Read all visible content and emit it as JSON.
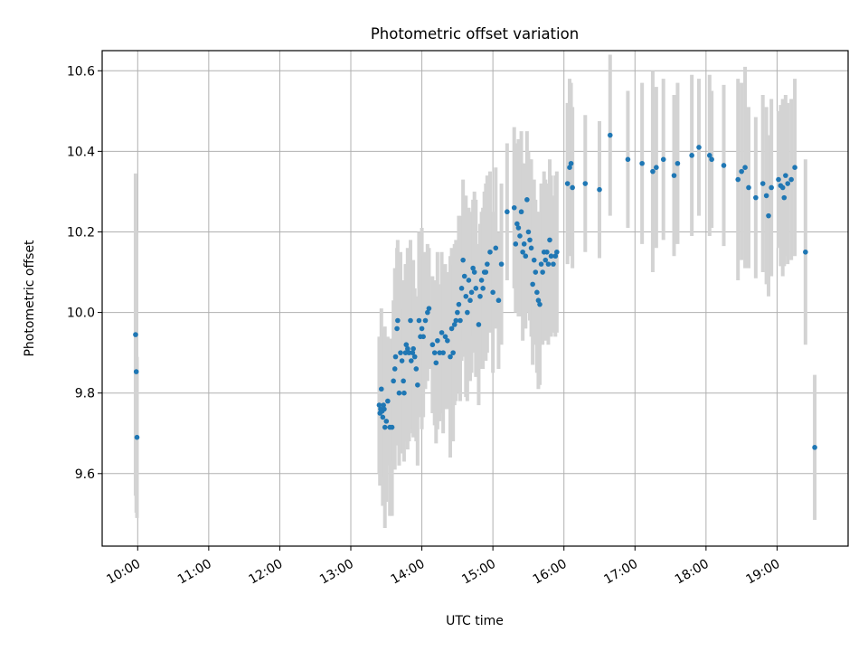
{
  "chart_data": {
    "type": "scatter",
    "title": "Photometric offset variation",
    "xlabel": "UTC time",
    "ylabel": "Photometric offset",
    "x_unit": "UTC hours",
    "xlim": [
      9.5,
      20.0
    ],
    "ylim": [
      9.42,
      10.65
    ],
    "grid": true,
    "x_ticks": [
      {
        "value": 10,
        "label": "10:00"
      },
      {
        "value": 11,
        "label": "11:00"
      },
      {
        "value": 12,
        "label": "12:00"
      },
      {
        "value": 13,
        "label": "13:00"
      },
      {
        "value": 14,
        "label": "14:00"
      },
      {
        "value": 15,
        "label": "15:00"
      },
      {
        "value": 16,
        "label": "16:00"
      },
      {
        "value": 17,
        "label": "17:00"
      },
      {
        "value": 18,
        "label": "18:00"
      },
      {
        "value": 19,
        "label": "19:00"
      }
    ],
    "y_ticks": [
      {
        "value": 9.6,
        "label": "9.6"
      },
      {
        "value": 9.8,
        "label": "9.8"
      },
      {
        "value": 10.0,
        "label": "10.0"
      },
      {
        "value": 10.2,
        "label": "10.2"
      },
      {
        "value": 10.4,
        "label": "10.4"
      },
      {
        "value": 10.6,
        "label": "10.6"
      }
    ],
    "marker_color": "#1f77b4",
    "errorbar_color": "#d3d3d3",
    "points": [
      [
        9.97,
        9.945,
        0.4
      ],
      [
        9.98,
        9.853,
        0.35
      ],
      [
        9.99,
        9.69,
        0.2
      ],
      [
        13.4,
        9.77,
        0.17
      ],
      [
        13.41,
        9.75,
        0.18
      ],
      [
        13.42,
        9.76,
        0.16
      ],
      [
        13.43,
        9.81,
        0.2
      ],
      [
        13.44,
        9.755,
        0.15
      ],
      [
        13.45,
        9.74,
        0.22
      ],
      [
        13.46,
        9.77,
        0.18
      ],
      [
        13.47,
        9.76,
        0.17
      ],
      [
        13.48,
        9.715,
        0.25
      ],
      [
        13.5,
        9.73,
        0.2
      ],
      [
        13.52,
        9.78,
        0.16
      ],
      [
        13.55,
        9.715,
        0.22
      ],
      [
        13.58,
        9.715,
        0.22
      ],
      [
        13.6,
        9.83,
        0.2
      ],
      [
        13.62,
        9.86,
        0.25
      ],
      [
        13.63,
        9.89,
        0.22
      ],
      [
        13.65,
        9.96,
        0.2
      ],
      [
        13.66,
        9.98,
        0.2
      ],
      [
        13.68,
        9.8,
        0.18
      ],
      [
        13.7,
        9.9,
        0.25
      ],
      [
        13.72,
        9.88,
        0.2
      ],
      [
        13.74,
        9.83,
        0.18
      ],
      [
        13.75,
        9.8,
        0.17
      ],
      [
        13.77,
        9.9,
        0.22
      ],
      [
        13.78,
        9.92,
        0.2
      ],
      [
        13.8,
        9.91,
        0.25
      ],
      [
        13.82,
        9.9,
        0.22
      ],
      [
        13.84,
        9.98,
        0.2
      ],
      [
        13.85,
        9.88,
        0.17
      ],
      [
        13.87,
        9.9,
        0.2
      ],
      [
        13.88,
        9.91,
        0.22
      ],
      [
        13.9,
        9.89,
        0.17
      ],
      [
        13.92,
        9.86,
        0.18
      ],
      [
        13.94,
        9.82,
        0.2
      ],
      [
        13.96,
        9.98,
        0.22
      ],
      [
        13.98,
        9.94,
        0.2
      ],
      [
        14.0,
        9.96,
        0.25
      ],
      [
        14.02,
        9.94,
        0.2
      ],
      [
        14.05,
        9.98,
        0.17
      ],
      [
        14.08,
        10.0,
        0.17
      ],
      [
        14.1,
        10.01,
        0.15
      ],
      [
        14.15,
        9.92,
        0.17
      ],
      [
        14.18,
        9.9,
        0.18
      ],
      [
        14.2,
        9.875,
        0.2
      ],
      [
        14.22,
        9.93,
        0.22
      ],
      [
        14.25,
        9.9,
        0.17
      ],
      [
        14.28,
        9.95,
        0.2
      ],
      [
        14.3,
        9.9,
        0.2
      ],
      [
        14.33,
        9.94,
        0.18
      ],
      [
        14.36,
        9.93,
        0.17
      ],
      [
        14.4,
        9.89,
        0.25
      ],
      [
        14.42,
        9.96,
        0.2
      ],
      [
        14.44,
        9.9,
        0.22
      ],
      [
        14.46,
        9.97,
        0.2
      ],
      [
        14.48,
        9.98,
        0.2
      ],
      [
        14.5,
        10.0,
        0.17
      ],
      [
        14.52,
        10.02,
        0.22
      ],
      [
        14.54,
        9.98,
        0.2
      ],
      [
        14.56,
        10.06,
        0.18
      ],
      [
        14.58,
        10.13,
        0.2
      ],
      [
        14.6,
        10.09,
        0.2
      ],
      [
        14.62,
        10.04,
        0.25
      ],
      [
        14.64,
        10.0,
        0.22
      ],
      [
        14.66,
        10.08,
        0.18
      ],
      [
        14.68,
        10.03,
        0.2
      ],
      [
        14.7,
        10.05,
        0.2
      ],
      [
        14.72,
        10.11,
        0.17
      ],
      [
        14.74,
        10.1,
        0.2
      ],
      [
        14.76,
        10.06,
        0.22
      ],
      [
        14.8,
        9.97,
        0.2
      ],
      [
        14.82,
        10.04,
        0.18
      ],
      [
        14.84,
        10.08,
        0.17
      ],
      [
        14.86,
        10.06,
        0.2
      ],
      [
        14.88,
        10.1,
        0.2
      ],
      [
        14.9,
        10.1,
        0.22
      ],
      [
        14.92,
        10.12,
        0.22
      ],
      [
        14.96,
        10.15,
        0.2
      ],
      [
        15.0,
        10.05,
        0.2
      ],
      [
        15.04,
        10.16,
        0.2
      ],
      [
        15.08,
        10.03,
        0.17
      ],
      [
        15.12,
        10.12,
        0.2
      ],
      [
        15.2,
        10.25,
        0.17
      ],
      [
        15.3,
        10.26,
        0.2
      ],
      [
        15.32,
        10.17,
        0.17
      ],
      [
        15.34,
        10.22,
        0.2
      ],
      [
        15.36,
        10.21,
        0.22
      ],
      [
        15.38,
        10.19,
        0.2
      ],
      [
        15.4,
        10.25,
        0.2
      ],
      [
        15.42,
        10.15,
        0.22
      ],
      [
        15.44,
        10.17,
        0.2
      ],
      [
        15.46,
        10.14,
        0.18
      ],
      [
        15.48,
        10.28,
        0.17
      ],
      [
        15.5,
        10.2,
        0.2
      ],
      [
        15.52,
        10.18,
        0.2
      ],
      [
        15.54,
        10.16,
        0.22
      ],
      [
        15.56,
        10.07,
        0.2
      ],
      [
        15.58,
        10.13,
        0.2
      ],
      [
        15.6,
        10.1,
        0.18
      ],
      [
        15.62,
        10.05,
        0.2
      ],
      [
        15.64,
        10.03,
        0.22
      ],
      [
        15.66,
        10.02,
        0.2
      ],
      [
        15.68,
        10.12,
        0.2
      ],
      [
        15.7,
        10.1,
        0.18
      ],
      [
        15.72,
        10.15,
        0.2
      ],
      [
        15.74,
        10.13,
        0.2
      ],
      [
        15.76,
        10.15,
        0.17
      ],
      [
        15.78,
        10.12,
        0.2
      ],
      [
        15.8,
        10.18,
        0.2
      ],
      [
        15.82,
        10.14,
        0.2
      ],
      [
        15.85,
        10.12,
        0.17
      ],
      [
        15.88,
        10.14,
        0.2
      ],
      [
        15.9,
        10.15,
        0.2
      ],
      [
        16.05,
        10.32,
        0.2
      ],
      [
        16.08,
        10.36,
        0.22
      ],
      [
        16.1,
        10.37,
        0.2
      ],
      [
        16.12,
        10.31,
        0.2
      ],
      [
        16.3,
        10.32,
        0.17
      ],
      [
        16.5,
        10.305,
        0.17
      ],
      [
        16.65,
        10.44,
        0.2
      ],
      [
        16.9,
        10.38,
        0.17
      ],
      [
        17.1,
        10.37,
        0.2
      ],
      [
        17.25,
        10.35,
        0.25
      ],
      [
        17.3,
        10.36,
        0.2
      ],
      [
        17.4,
        10.38,
        0.2
      ],
      [
        17.55,
        10.34,
        0.2
      ],
      [
        17.6,
        10.37,
        0.2
      ],
      [
        17.8,
        10.39,
        0.2
      ],
      [
        17.9,
        10.41,
        0.17
      ],
      [
        18.05,
        10.39,
        0.2
      ],
      [
        18.08,
        10.38,
        0.17
      ],
      [
        18.25,
        10.365,
        0.2
      ],
      [
        18.45,
        10.33,
        0.25
      ],
      [
        18.5,
        10.35,
        0.22
      ],
      [
        18.55,
        10.36,
        0.25
      ],
      [
        18.6,
        10.31,
        0.2
      ],
      [
        18.7,
        10.285,
        0.2
      ],
      [
        18.8,
        10.32,
        0.22
      ],
      [
        18.85,
        10.29,
        0.22
      ],
      [
        18.88,
        10.24,
        0.2
      ],
      [
        18.92,
        10.31,
        0.22
      ],
      [
        19.02,
        10.33,
        0.17
      ],
      [
        19.05,
        10.315,
        0.2
      ],
      [
        19.08,
        10.31,
        0.22
      ],
      [
        19.1,
        10.285,
        0.17
      ],
      [
        19.12,
        10.34,
        0.2
      ],
      [
        19.15,
        10.32,
        0.2
      ],
      [
        19.2,
        10.33,
        0.2
      ],
      [
        19.25,
        10.36,
        0.22
      ],
      [
        19.4,
        10.15,
        0.23
      ],
      [
        19.53,
        9.665,
        0.18
      ]
    ]
  }
}
